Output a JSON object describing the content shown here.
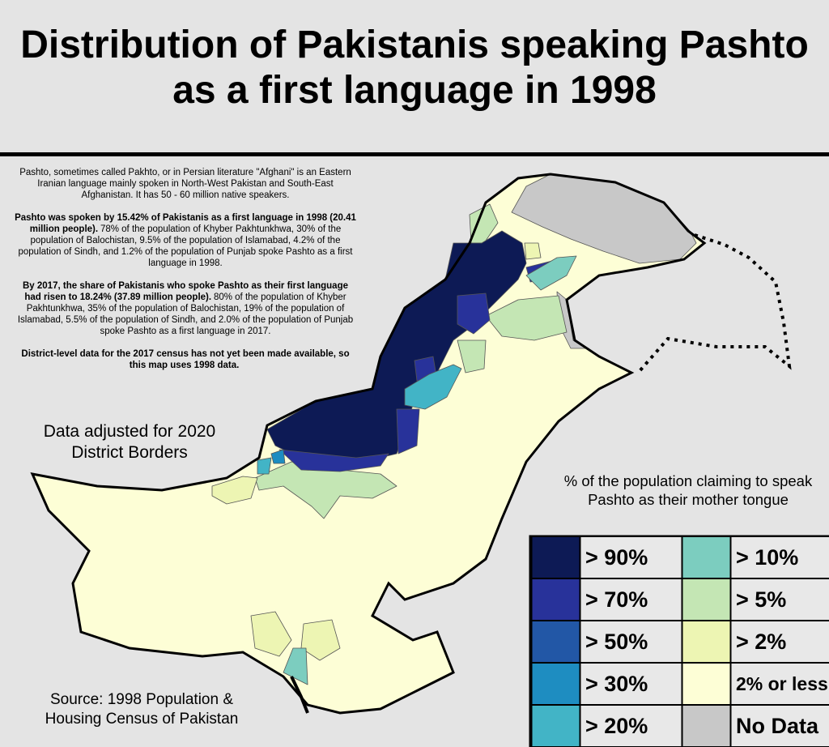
{
  "title": "Distribution of Pakistanis speaking Pashto as a first language in 1998",
  "description": [
    {
      "text": "Pashto, sometimes called Pakhto, or in Persian literature \"Afghani\" is an Eastern Iranian language mainly spoken in North-West Pakistan and South-East Afghanistan. It has 50 - 60 million native speakers."
    },
    {
      "bold": "Pashto was spoken by 15.42% of Pakistanis as a first language in 1998 (20.41 million people).",
      "text": "78% of the population of Khyber Pakhtunkhwa, 30% of the population of Balochistan, 9.5% of the population of Islamabad, 4.2% of the population of Sindh, and 1.2% of the population of Punjab spoke Pashto as a first language in 1998."
    },
    {
      "bold": "By 2017, the share of Pakistanis who spoke Pashto as their first language had risen to 18.24% (37.89 million people).",
      "text": "80% of the population of Khyber Pakhtunkhwa, 35% of the population of Balochistan, 19% of the population of Islamabad, 5.5% of the population of Sindh, and 2.0% of the population of Punjab spoke Pashto as a first language in 2017."
    },
    {
      "bold": "District-level data for the 2017 census has not yet been made available, so this map uses 1998 data."
    }
  ],
  "note": "Data adjusted for 2020 District Borders",
  "source": "Source: 1998 Population & Housing Census of Pakistan",
  "legend": {
    "title": "% of the population claiming to speak Pashto as their mother tongue",
    "items": [
      {
        "label": "> 90%",
        "color": "#0d1a55"
      },
      {
        "label": "> 70%",
        "color": "#28329a"
      },
      {
        "label": "> 50%",
        "color": "#2257a6"
      },
      {
        "label": "> 30%",
        "color": "#1e8dc1"
      },
      {
        "label": "> 20%",
        "color": "#42b4c6"
      },
      {
        "label": "> 10%",
        "color": "#7ccdbf"
      },
      {
        "label": "> 5%",
        "color": "#c4e6b4"
      },
      {
        "label": "> 2%",
        "color": "#edf5b3"
      },
      {
        "label": "2% or less",
        "color": "#fdfed6"
      },
      {
        "label": "No Data",
        "color": "#c8c8c8"
      }
    ]
  }
}
